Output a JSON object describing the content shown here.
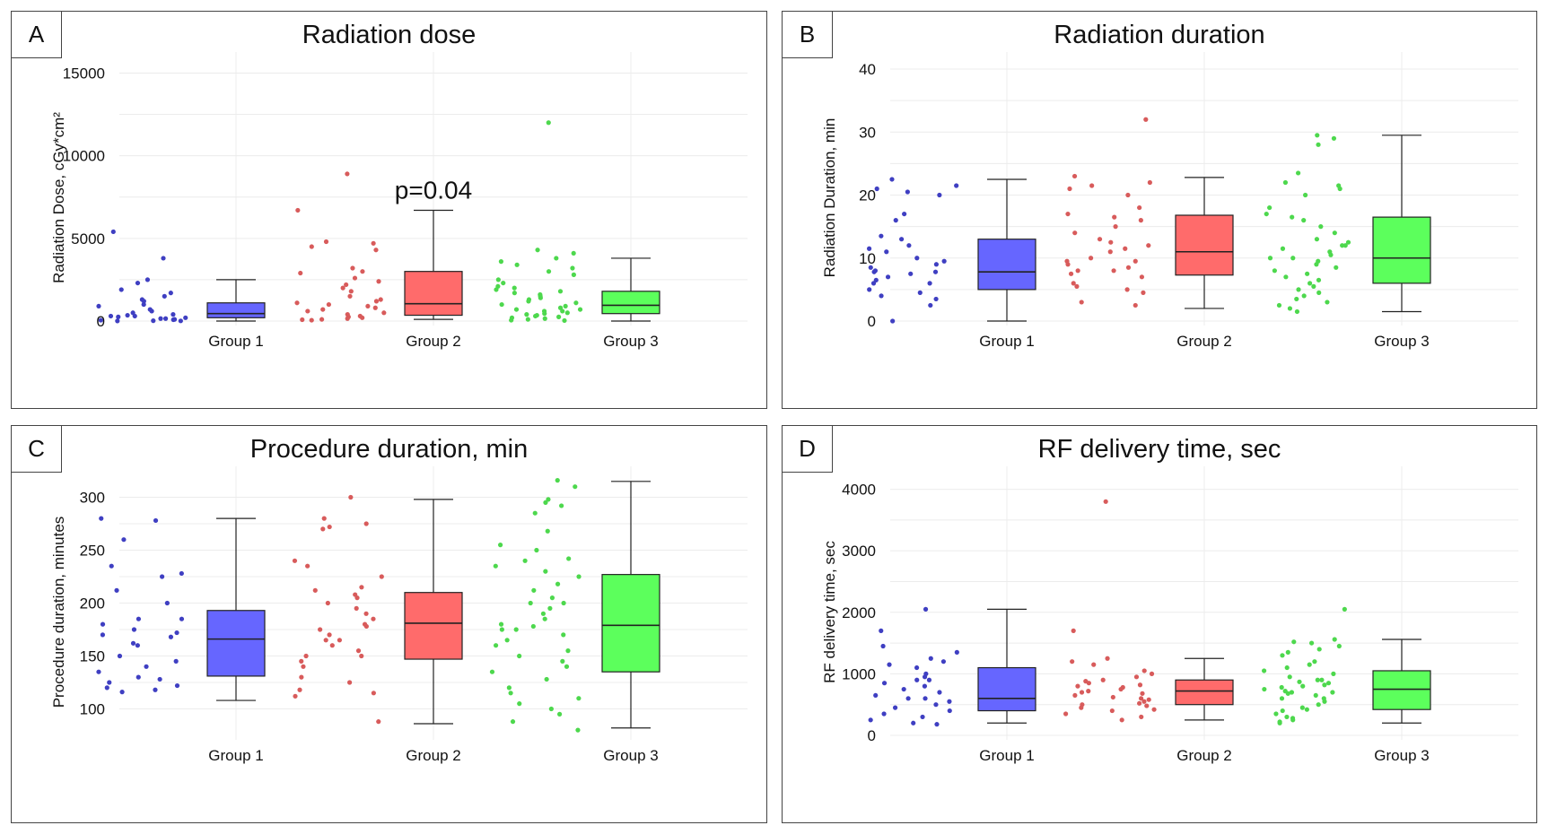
{
  "chart_data": [
    {
      "type": "boxplot",
      "panel_label": "A",
      "title": "Radiation dose",
      "ylabel": "Radiation Dose, cGy*cm²",
      "ylim": [
        0,
        16000
      ],
      "yticks": [
        0,
        5000,
        10000,
        15000
      ],
      "categories": [
        "Group 1",
        "Group 2",
        "Group 3"
      ],
      "annotation": "p=0.04",
      "colors": {
        "box": [
          "#6666ff",
          "#ff6b6b",
          "#5cff5c"
        ],
        "points": [
          "#3f3fc2",
          "#d85b5b",
          "#4dd84d"
        ]
      },
      "series": [
        {
          "group": "Group 1",
          "min": 0,
          "q1": 200,
          "median": 450,
          "q3": 1100,
          "max": 2500,
          "points": [
            5400,
            3800,
            2500,
            2300,
            1900,
            1700,
            1500,
            1300,
            1200,
            1000,
            900,
            700,
            600,
            500,
            400,
            350,
            300,
            250,
            200,
            150,
            100,
            80,
            50,
            20,
            10,
            5,
            150,
            300
          ]
        },
        {
          "group": "Group 2",
          "min": 100,
          "q1": 350,
          "median": 1050,
          "q3": 3000,
          "max": 6700,
          "points": [
            8900,
            6700,
            4800,
            4700,
            4500,
            4300,
            3200,
            3000,
            2900,
            2600,
            2400,
            2200,
            2000,
            1800,
            1500,
            1300,
            1200,
            1100,
            900,
            800,
            700,
            600,
            500,
            400,
            300,
            250,
            200,
            150,
            100,
            50,
            80,
            1000
          ]
        },
        {
          "group": "Group 3",
          "min": 0,
          "q1": 450,
          "median": 950,
          "q3": 1800,
          "max": 3800,
          "points": [
            12000,
            4300,
            4100,
            3800,
            3600,
            3400,
            3200,
            3000,
            2800,
            2500,
            2300,
            2100,
            1900,
            1700,
            1500,
            1400,
            1300,
            1200,
            1100,
            1000,
            900,
            800,
            700,
            600,
            500,
            450,
            400,
            350,
            300,
            250,
            200,
            150,
            100,
            50,
            30,
            1600,
            1800,
            2000,
            700,
            600
          ]
        }
      ]
    },
    {
      "type": "boxplot",
      "panel_label": "B",
      "title": "Radiation duration",
      "ylabel": "Radiation Duration, min",
      "ylim": [
        0,
        42
      ],
      "yticks": [
        0,
        10,
        20,
        30,
        40
      ],
      "categories": [
        "Group 1",
        "Group 2",
        "Group 3"
      ],
      "series": [
        {
          "group": "Group 1",
          "min": 0,
          "q1": 5,
          "median": 7.8,
          "q3": 13,
          "max": 22.5,
          "points": [
            22.5,
            21.5,
            21,
            20.5,
            20,
            17,
            16,
            13.5,
            13,
            12,
            11.5,
            11,
            10,
            9.5,
            9,
            8.5,
            8,
            7.8,
            7.5,
            7,
            6.5,
            6,
            5,
            4.5,
            4,
            3.5,
            2.5,
            0,
            7.8,
            6
          ]
        },
        {
          "group": "Group 2",
          "min": 2,
          "q1": 7.3,
          "median": 11,
          "q3": 16.8,
          "max": 22.8,
          "points": [
            32,
            23,
            22,
            21.5,
            21,
            20,
            18,
            17,
            16.5,
            16,
            15,
            14,
            13,
            12.5,
            12,
            11.5,
            11,
            10,
            9.5,
            9,
            8.5,
            8,
            7.5,
            7,
            6,
            5.5,
            5,
            4.5,
            3,
            2.5,
            9.5,
            8
          ]
        },
        {
          "group": "Group 3",
          "min": 1.5,
          "q1": 6,
          "median": 10,
          "q3": 16.5,
          "max": 29.5,
          "points": [
            29.5,
            29,
            28,
            23.5,
            22,
            21.5,
            21,
            20,
            18,
            17,
            16.5,
            16,
            15,
            14,
            13,
            12.5,
            12,
            11.5,
            11,
            10.5,
            10,
            9.5,
            9,
            8.5,
            8,
            7.5,
            7,
            6.5,
            6,
            5.5,
            5,
            4.5,
            4,
            3.5,
            3,
            2.5,
            2,
            1.5,
            12,
            10
          ]
        }
      ]
    },
    {
      "type": "boxplot",
      "panel_label": "C",
      "title": "Procedure duration, min",
      "ylabel": "Procedure duration, minutes",
      "ylim": [
        75,
        325
      ],
      "yticks": [
        100,
        150,
        200,
        250,
        300
      ],
      "categories": [
        "Group 1",
        "Group 2",
        "Group 3"
      ],
      "series": [
        {
          "group": "Group 1",
          "min": 108,
          "q1": 131,
          "median": 166,
          "q3": 193,
          "max": 280,
          "points": [
            280,
            278,
            260,
            235,
            228,
            225,
            212,
            200,
            185,
            180,
            175,
            170,
            168,
            162,
            160,
            150,
            145,
            140,
            135,
            130,
            128,
            125,
            122,
            120,
            118,
            116,
            172,
            185
          ]
        },
        {
          "group": "Group 2",
          "min": 86,
          "q1": 147,
          "median": 181,
          "q3": 210,
          "max": 298,
          "points": [
            300,
            280,
            275,
            272,
            270,
            240,
            235,
            225,
            215,
            212,
            208,
            205,
            200,
            195,
            190,
            185,
            180,
            178,
            175,
            170,
            165,
            160,
            155,
            150,
            145,
            140,
            130,
            125,
            118,
            115,
            112,
            88,
            165,
            150
          ]
        },
        {
          "group": "Group 3",
          "min": 82,
          "q1": 135,
          "median": 179,
          "q3": 227,
          "max": 315,
          "points": [
            316,
            310,
            298,
            295,
            292,
            285,
            268,
            255,
            250,
            242,
            240,
            235,
            230,
            225,
            218,
            212,
            205,
            200,
            195,
            190,
            185,
            180,
            178,
            175,
            170,
            165,
            160,
            155,
            150,
            145,
            140,
            135,
            128,
            120,
            115,
            110,
            105,
            100,
            95,
            88,
            80,
            200,
            175
          ]
        }
      ]
    },
    {
      "type": "boxplot",
      "panel_label": "D",
      "title": "RF delivery time, sec",
      "ylabel": "RF delivery time, sec",
      "ylim": [
        0,
        4300
      ],
      "yticks": [
        0,
        1000,
        2000,
        3000,
        4000
      ],
      "categories": [
        "Group 1",
        "Group 2",
        "Group 3"
      ],
      "series": [
        {
          "group": "Group 1",
          "min": 200,
          "q1": 400,
          "median": 600,
          "q3": 1100,
          "max": 2050,
          "points": [
            2050,
            1700,
            1450,
            1350,
            1250,
            1200,
            1150,
            1100,
            1000,
            950,
            900,
            850,
            800,
            750,
            700,
            650,
            600,
            550,
            500,
            450,
            400,
            350,
            300,
            250,
            200,
            180,
            600,
            900
          ]
        },
        {
          "group": "Group 2",
          "min": 250,
          "q1": 500,
          "median": 720,
          "q3": 900,
          "max": 1250,
          "points": [
            3800,
            1700,
            1250,
            1200,
            1150,
            1050,
            1000,
            950,
            900,
            880,
            850,
            820,
            800,
            780,
            750,
            720,
            700,
            680,
            650,
            620,
            600,
            580,
            550,
            520,
            500,
            480,
            450,
            420,
            400,
            350,
            300,
            250
          ]
        },
        {
          "group": "Group 3",
          "min": 200,
          "q1": 420,
          "median": 750,
          "q3": 1050,
          "max": 1560,
          "points": [
            2050,
            1560,
            1520,
            1500,
            1450,
            1400,
            1350,
            1300,
            1200,
            1150,
            1100,
            1050,
            1000,
            950,
            900,
            870,
            850,
            820,
            800,
            780,
            750,
            720,
            700,
            680,
            650,
            600,
            550,
            500,
            450,
            420,
            400,
            350,
            300,
            280,
            250,
            220,
            200,
            900,
            700,
            600
          ]
        }
      ]
    }
  ]
}
